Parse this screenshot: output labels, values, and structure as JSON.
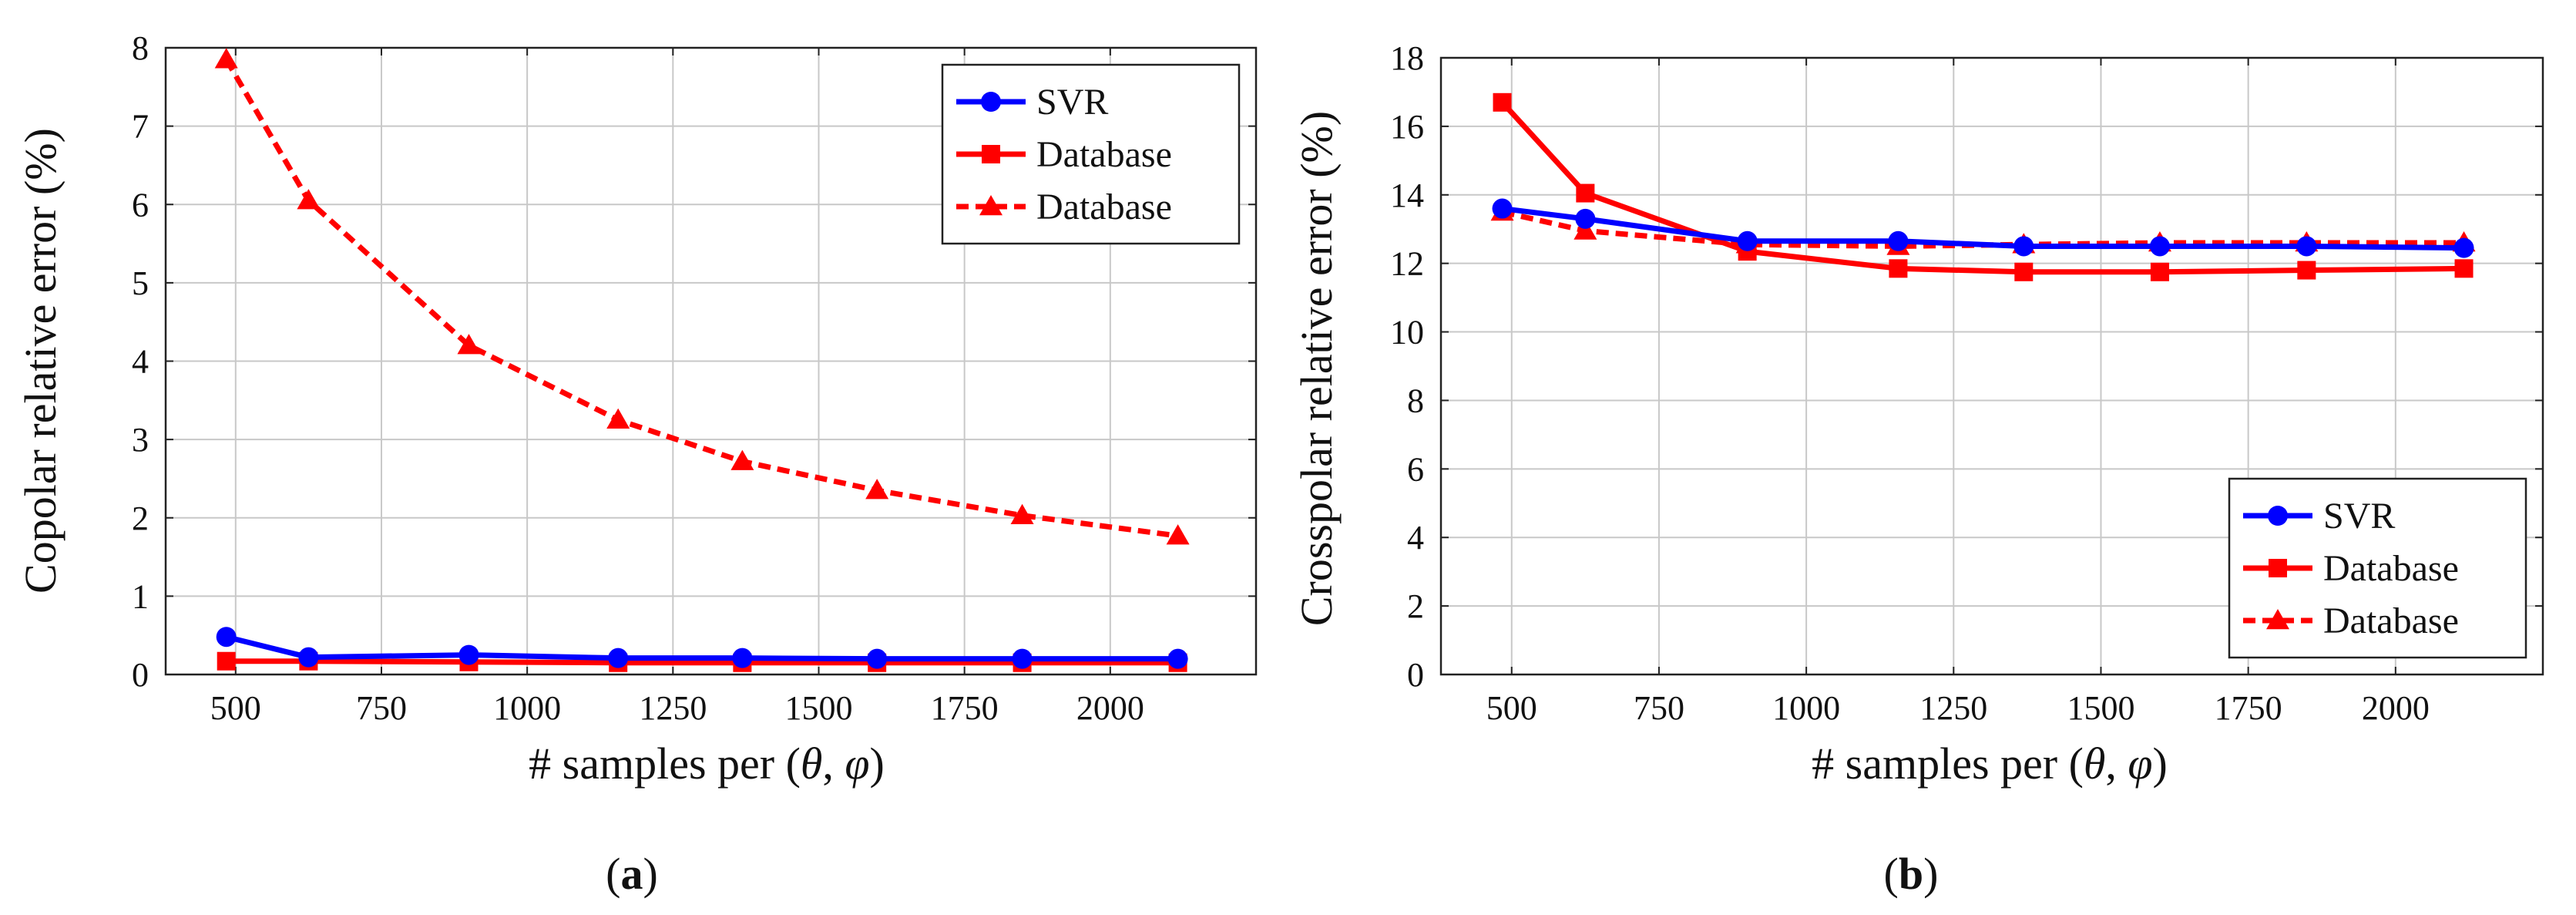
{
  "chart_data": [
    {
      "id": "a",
      "type": "line",
      "caption_open": "(",
      "caption_letter": "a",
      "caption_close": ")",
      "xlabel_prefix": "# samples per (",
      "xlabel_theta": "θ",
      "xlabel_sep": ", ",
      "xlabel_phi": "φ",
      "xlabel_suffix": ")",
      "ylabel": "Copolar relative error (%)",
      "xlim": [
        380,
        2250
      ],
      "ylim": [
        0,
        8
      ],
      "xticks": [
        500,
        750,
        1000,
        1250,
        1500,
        1750,
        2000
      ],
      "yticks": [
        0,
        1,
        2,
        3,
        4,
        5,
        6,
        7,
        8
      ],
      "grid": true,
      "legend_position": "top-right",
      "x": [
        484,
        625,
        900,
        1156,
        1369,
        1600,
        1849,
        2116
      ],
      "series": [
        {
          "name": "SVR",
          "color": "#0000ff",
          "marker": "circle",
          "dash": "solid",
          "values": [
            0.48,
            0.22,
            0.25,
            0.21,
            0.21,
            0.2,
            0.2,
            0.2
          ]
        },
        {
          "name": "Database",
          "color": "#ff0000",
          "marker": "square",
          "dash": "solid",
          "values": [
            0.17,
            0.17,
            0.16,
            0.15,
            0.15,
            0.15,
            0.15,
            0.15
          ]
        },
        {
          "name": "Database",
          "color": "#ff0000",
          "marker": "triangle",
          "dash": "dashed",
          "values": [
            7.85,
            6.05,
            4.2,
            3.25,
            2.72,
            2.35,
            2.03,
            1.77
          ]
        }
      ]
    },
    {
      "id": "b",
      "type": "line",
      "caption_open": "(",
      "caption_letter": "b",
      "caption_close": ")",
      "xlabel_prefix": "# samples per (",
      "xlabel_theta": "θ",
      "xlabel_sep": ", ",
      "xlabel_phi": "φ",
      "xlabel_suffix": ")",
      "ylabel": "Crosspolar relative error (%)",
      "xlim": [
        380,
        2250
      ],
      "ylim": [
        0,
        18
      ],
      "xticks": [
        500,
        750,
        1000,
        1250,
        1500,
        1750,
        2000
      ],
      "yticks": [
        0,
        2,
        4,
        6,
        8,
        10,
        12,
        14,
        16,
        18
      ],
      "grid": true,
      "legend_position": "bottom-right",
      "x": [
        484,
        625,
        900,
        1156,
        1369,
        1600,
        1849,
        2116
      ],
      "series": [
        {
          "name": "SVR",
          "color": "#0000ff",
          "marker": "circle",
          "dash": "solid",
          "values": [
            13.6,
            13.3,
            12.65,
            12.65,
            12.5,
            12.5,
            12.5,
            12.45
          ]
        },
        {
          "name": "Database",
          "color": "#ff0000",
          "marker": "square",
          "dash": "solid",
          "values": [
            16.7,
            14.05,
            12.35,
            11.85,
            11.75,
            11.75,
            11.8,
            11.85
          ]
        },
        {
          "name": "Database",
          "color": "#ff0000",
          "marker": "triangle",
          "dash": "dashed",
          "values": [
            13.5,
            12.95,
            12.55,
            12.5,
            12.55,
            12.6,
            12.6,
            12.6
          ]
        }
      ]
    }
  ]
}
